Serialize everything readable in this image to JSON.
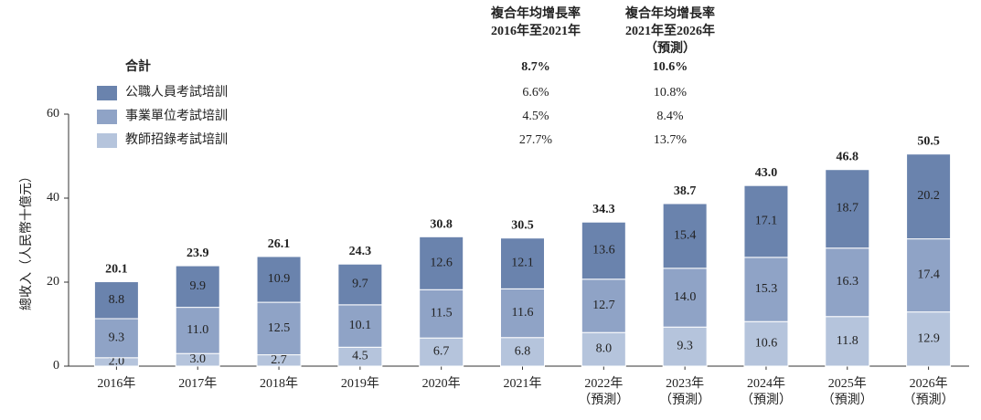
{
  "chart_data": {
    "type": "stacked-bar",
    "ylabel": "總收入（人民幣十億元）",
    "ylim": [
      0,
      60
    ],
    "yticks": [
      0,
      20,
      40,
      60
    ],
    "grid": false,
    "categories": [
      "2016年",
      "2017年",
      "2018年",
      "2019年",
      "2020年",
      "2021年",
      "2022年\n（預測）",
      "2023年\n（預測）",
      "2024年\n（預測）",
      "2025年\n（預測）",
      "2026年\n（預測）"
    ],
    "series": [
      {
        "name": "公職人員考試培訓",
        "color": "#6a83ad",
        "values": [
          8.8,
          9.9,
          10.9,
          9.7,
          12.6,
          12.1,
          13.6,
          15.4,
          17.1,
          18.7,
          20.2
        ],
        "value_labels": [
          "8.8",
          "9.9",
          "10.9",
          "9.7",
          "12.6",
          "12.1",
          "13.6",
          "15.4",
          "17.1",
          "18.7",
          "20.2"
        ]
      },
      {
        "name": "事業單位考試培訓",
        "color": "#8fa3c6",
        "values": [
          9.3,
          11.0,
          12.5,
          10.1,
          11.5,
          11.6,
          12.7,
          14.0,
          15.3,
          16.3,
          17.4
        ],
        "value_labels": [
          "9.3",
          "11.0",
          "12.5",
          "10.1",
          "11.5",
          "11.6",
          "12.7",
          "14.0",
          "15.3",
          "16.3",
          "17.4"
        ]
      },
      {
        "name": "教師招錄考試培訓",
        "color": "#b5c4dc",
        "values": [
          2.0,
          3.0,
          2.7,
          4.5,
          6.7,
          6.8,
          8.0,
          9.3,
          10.6,
          11.8,
          12.9
        ],
        "value_labels": [
          "2.0",
          "3.0",
          "2.7",
          "4.5",
          "6.7",
          "6.8",
          "8.0",
          "9.3",
          "10.6",
          "11.8",
          "12.9"
        ]
      }
    ],
    "totals": [
      20.1,
      23.9,
      26.1,
      24.3,
      30.8,
      30.5,
      34.3,
      38.7,
      43.0,
      46.8,
      50.5
    ],
    "total_labels": [
      "20.1",
      "23.9",
      "26.1",
      "24.3",
      "30.8",
      "30.5",
      "34.3",
      "38.7",
      "43.0",
      "46.8",
      "50.5"
    ],
    "cagr_table": {
      "headers": [
        "複合年均增長率\n2016年至2021年",
        "複合年均增長率\n2021年至2026年\n（預測）"
      ],
      "total_label": "合計",
      "total": [
        "8.7%",
        "10.6%"
      ],
      "rows": [
        [
          "6.6%",
          "10.8%"
        ],
        [
          "4.5%",
          "8.4%"
        ],
        [
          "27.7%",
          "13.7%"
        ]
      ]
    }
  }
}
